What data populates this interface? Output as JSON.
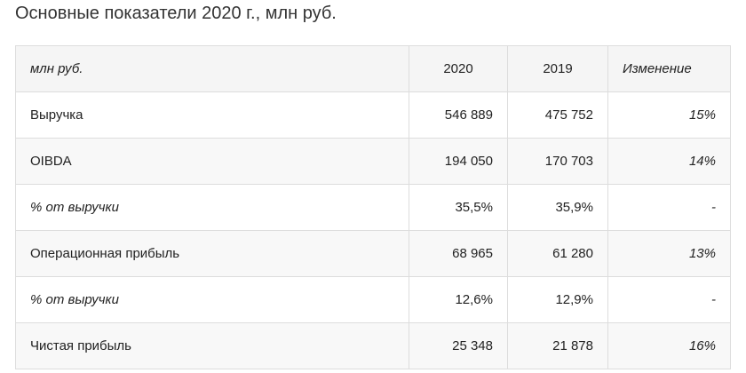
{
  "header": {
    "title": "Основные показатели 2020 г., млн руб."
  },
  "table": {
    "columns": [
      "млн руб.",
      "2020",
      "2019",
      "Изменение"
    ],
    "rows": [
      [
        "Выручка",
        "546 889",
        "475 752",
        "15%"
      ],
      [
        "OIBDA",
        "194 050",
        "170 703",
        "14%"
      ],
      [
        "% от выручки",
        "35,5%",
        "35,9%",
        "-"
      ],
      [
        "Операционная прибыль",
        "68 965",
        "61 280",
        "13%"
      ],
      [
        "% от выручки",
        "12,6%",
        "12,9%",
        "-"
      ],
      [
        "Чистая прибыль",
        "25 348",
        "21 878",
        "16%"
      ]
    ]
  }
}
